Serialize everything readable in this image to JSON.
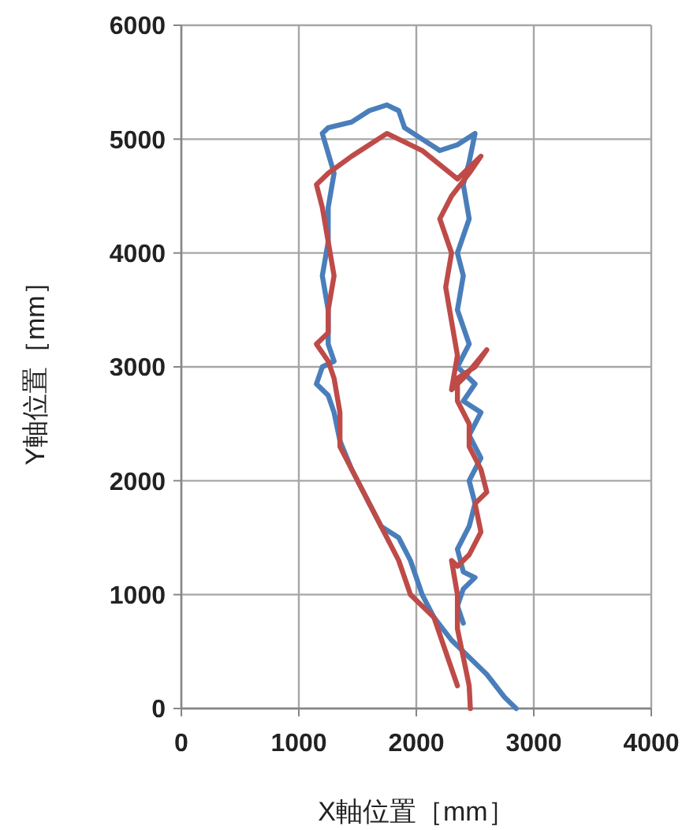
{
  "chart_data": {
    "type": "line",
    "xlabel": "X軸位置［mm］",
    "ylabel": "Y軸位置［mm］",
    "xlim": [
      0,
      4000
    ],
    "xticks": [
      0,
      1000,
      2000,
      3000,
      4000
    ],
    "ylim": [
      0,
      6000
    ],
    "yticks": [
      0,
      1000,
      2000,
      3000,
      4000,
      5000,
      6000
    ],
    "grid": true,
    "marker": "none",
    "line_style": "solid",
    "series": [
      {
        "color": "#4a7ebb",
        "x": [
          2850,
          2750,
          2600,
          2450,
          2300,
          2150,
          2050,
          1950,
          1850,
          1700,
          1600,
          1450,
          1350,
          1300,
          1250,
          1150,
          1200,
          1300,
          1250,
          1250,
          1200,
          1250,
          1250,
          1300,
          1200,
          1250,
          1450,
          1600,
          1750,
          1850,
          1900,
          2050,
          2200,
          2350,
          2500,
          2450,
          2400,
          2450,
          2350,
          2400,
          2350,
          2450,
          2350,
          2500,
          2400,
          2550,
          2450,
          2550,
          2450,
          2500,
          2450,
          2350,
          2400,
          2500,
          2400,
          2350,
          2400
        ],
        "values": [
          0,
          100,
          300,
          450,
          600,
          800,
          1000,
          1300,
          1500,
          1600,
          1800,
          2100,
          2350,
          2600,
          2750,
          2850,
          3000,
          3050,
          3200,
          3500,
          3800,
          4100,
          4400,
          4700,
          5050,
          5100,
          5150,
          5250,
          5300,
          5250,
          5100,
          5000,
          4900,
          4950,
          5050,
          4800,
          4600,
          4300,
          4000,
          3800,
          3500,
          3200,
          3000,
          2850,
          2700,
          2600,
          2400,
          2200,
          2000,
          1800,
          1600,
          1400,
          1200,
          1150,
          1050,
          900,
          750
        ]
      },
      {
        "color": "#be4b48",
        "x": [
          2460,
          2450,
          2400,
          2350,
          2350,
          2300,
          2350,
          2450,
          2550,
          2500,
          2600,
          2550,
          2450,
          2450,
          2350,
          2350,
          2500,
          2600,
          2400,
          2300,
          2350,
          2300,
          2250,
          2300,
          2200,
          2300,
          2450,
          2550,
          2350,
          2050,
          1750,
          1450,
          1250,
          1150,
          1200,
          1250,
          1300,
          1250,
          1250,
          1150,
          1250,
          1300,
          1350,
          1350,
          1450,
          1600,
          1750,
          1850,
          1950,
          2150,
          2250,
          2350
        ],
        "values": [
          0,
          200,
          450,
          700,
          1000,
          1300,
          1250,
          1350,
          1550,
          1800,
          1900,
          2100,
          2300,
          2500,
          2700,
          2900,
          3000,
          3150,
          2900,
          2800,
          3100,
          3400,
          3700,
          4000,
          4300,
          4500,
          4700,
          4850,
          4650,
          4900,
          5050,
          4850,
          4700,
          4600,
          4400,
          4100,
          3800,
          3500,
          3300,
          3200,
          3050,
          2900,
          2600,
          2300,
          2100,
          1800,
          1500,
          1300,
          1000,
          800,
          500,
          200
        ]
      }
    ]
  }
}
